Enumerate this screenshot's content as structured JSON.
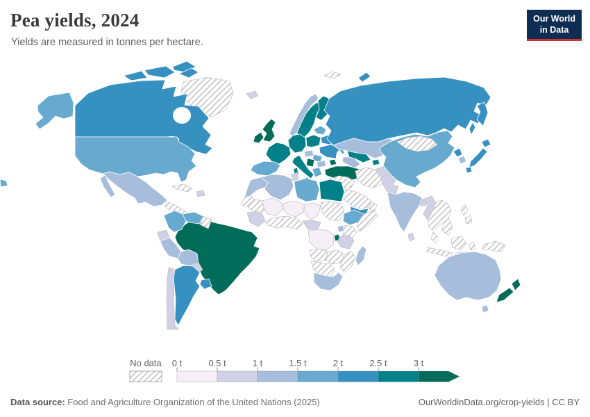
{
  "header": {
    "title": "Pea yields, 2024",
    "subtitle": "Yields are measured in tonnes per hectare.",
    "logo": {
      "line1": "Our World",
      "line2": "in Data",
      "bg_color": "#0d2d52",
      "accent_color": "#d0342f"
    }
  },
  "legend": {
    "no_data_label": "No data",
    "tick_labels": [
      "0 t",
      "0.5 t",
      "1 t",
      "1.5 t",
      "2 t",
      "2.5 t",
      "3 t"
    ]
  },
  "footer": {
    "source_label": "Data source:",
    "source_text": " Food and Agriculture Organization of the United Nations (2025)",
    "link_text": "OurWorldinData.org/crop-yields | CC BY"
  },
  "chart_data": {
    "type": "choropleth-map",
    "title": "Pea yields, 2024",
    "unit": "tonnes per hectare",
    "year": 2024,
    "legend_position": "bottom",
    "bins": [
      {
        "id": "0-0.5",
        "label": "0 t",
        "color": "#f6eff7"
      },
      {
        "id": "0.5-1",
        "label": "0.5 t",
        "color": "#d0d1e6"
      },
      {
        "id": "1-1.5",
        "label": "1 t",
        "color": "#a6bddb"
      },
      {
        "id": "1.5-2",
        "label": "1.5 t",
        "color": "#67a9cf"
      },
      {
        "id": "2-2.5",
        "label": "2 t",
        "color": "#3690c0"
      },
      {
        "id": "2.5-3",
        "label": "2.5 t",
        "color": "#02818a"
      },
      {
        "id": "3+",
        "label": "3 t",
        "color": "#016c59"
      }
    ],
    "no_data": {
      "label": "No data",
      "pattern": "diagonal-hatch",
      "line_color": "#bcbcbc"
    },
    "countries": {
      "greenland": "no-data",
      "svalbard": "no-data",
      "canada": "2-2.5",
      "united-states": "1.5-2",
      "mexico": "1-1.5",
      "central-america": "no-data",
      "cuba": "no-data",
      "hispaniola": "0.5-1",
      "colombia": "1.5-2",
      "venezuela": "1.5-2",
      "guyanas": "no-data",
      "ecuador": "0.5-1",
      "peru": "1-1.5",
      "bolivia": "1-1.5",
      "chile": "0.5-1",
      "argentina": "2-2.5",
      "paraguay": "0.5-1",
      "uruguay": "2-2.5",
      "brazil": "3+",
      "iceland": "0.5-1",
      "norway": "1-1.5",
      "sweden": "2.5-3",
      "finland": "2.5-3",
      "united-kingdom": "3+",
      "ireland": "3+",
      "denmark": "2.5-3",
      "germany-central-europe": "2.5-3",
      "france": "2.5-3",
      "spain": "1.5-2",
      "poland": "2.5-3",
      "baltics": "1.5-2",
      "belarus": "2-2.5",
      "ukraine": "2-2.5",
      "hungary": "1-1.5",
      "romania": "1.5-2",
      "serbia": "3+",
      "bulgaria": "1-1.5",
      "greece": "1.5-2",
      "italy": "2.5-3",
      "turkey": "3+",
      "russia": "2-2.5",
      "kazakhstan": "1-1.5",
      "uzbekistan": "2.5-3",
      "turkmenistan": "1-1.5",
      "tajikistan": "2.5-3",
      "azerbaijan": "3+",
      "syria-iraq": "no-data",
      "iran": "no-data",
      "saudi-arabia": "no-data",
      "yemen": "2-2.5",
      "oman": "no-data",
      "morocco": "1-1.5",
      "western-sahara": "no-data",
      "algeria": "1-1.5",
      "tunisia": "0.5-1",
      "libya": "1.5-2",
      "egypt": "2.5-3",
      "mauritania": "no-data",
      "mali": "0-0.5",
      "niger": "0-0.5",
      "chad": "0-0.5",
      "sudan": "no-data",
      "senegal-guinea": "0.5-1",
      "ghana-nigeria": "no-data",
      "cameroon-car": "0.5-1",
      "ethiopia": "1.5-2",
      "somalia": "no-data",
      "kenya": "no-data",
      "uganda": "1-1.5",
      "dr-congo": "0-0.5",
      "rwanda-burundi": "3+",
      "tanzania": "0.5-1",
      "angola": "no-data",
      "zambia-zimbabwe": "no-data",
      "mozambique": "no-data",
      "namibia-botswana": "no-data",
      "south-africa": "1-1.5",
      "madagascar": "1-1.5",
      "afghanistan": "0.5-1",
      "pakistan": "0.5-1",
      "india": "1-1.5",
      "sri-lanka": "0.5-1",
      "bangladesh": "0.5-1",
      "myanmar": "0.5-1",
      "china": "1.5-2",
      "mongolia": "no-data",
      "north-korea": "2-2.5",
      "south-korea": "1-1.5",
      "japan": "2-2.5",
      "southeast-asia": "no-data",
      "malaysia": "no-data",
      "indonesia": "no-data",
      "new-guinea": "no-data",
      "philippines": "no-data",
      "australia": "1-1.5",
      "new-zealand": "3+"
    }
  }
}
